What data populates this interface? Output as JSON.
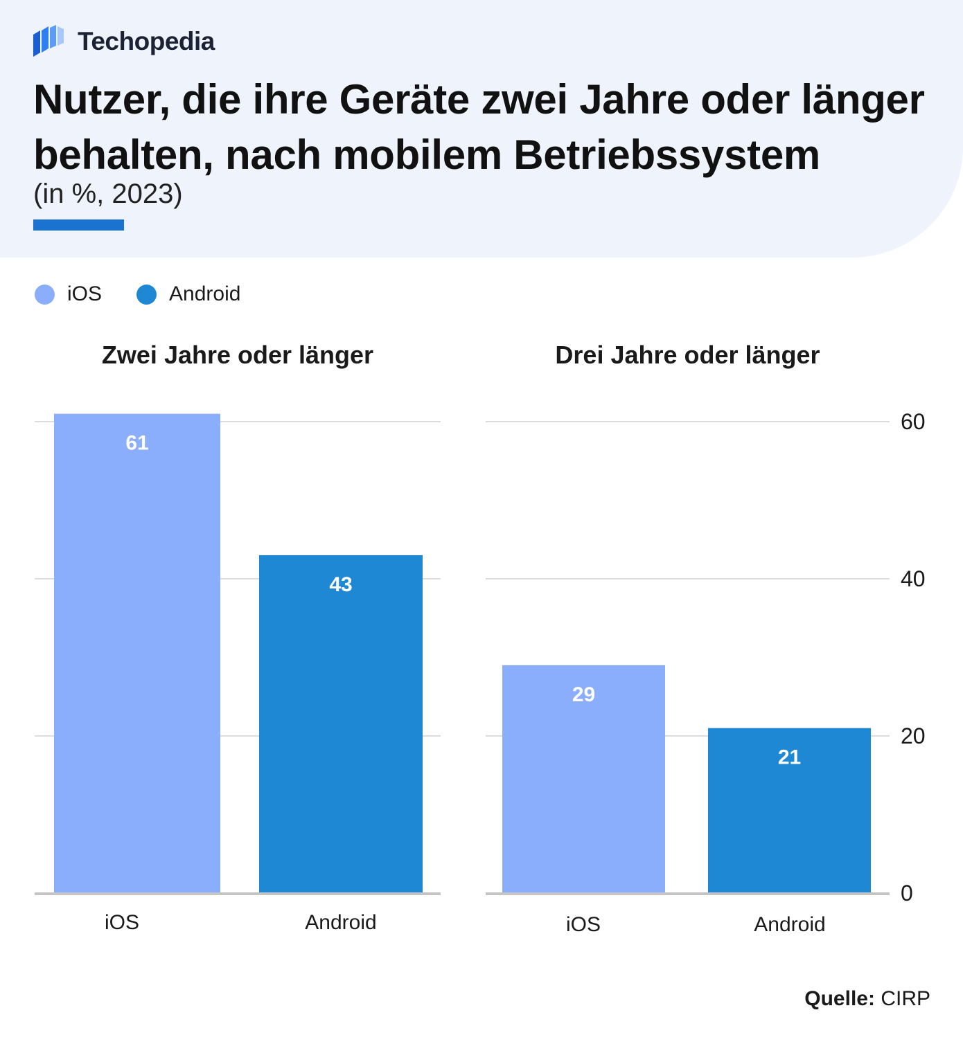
{
  "brand": {
    "name": "Techopedia",
    "accent_color": "#1a73d1"
  },
  "header": {
    "title": "Nutzer, die ihre Geräte zwei Jahre oder länger behalten, nach mobilem Betriebssystem",
    "subtitle": "(in %, 2023)"
  },
  "legend": [
    {
      "label": "iOS",
      "color": "#8aaefc"
    },
    {
      "label": "Android",
      "color": "#1e88d4"
    }
  ],
  "footer": {
    "source_label": "Quelle:",
    "source_value": "CIRP"
  },
  "chart_data": {
    "type": "bar",
    "grid": true,
    "ylim": [
      0,
      60
    ],
    "y_ticks": [
      0,
      20,
      40,
      60
    ],
    "y_axis_position": "right",
    "data_labels": true,
    "panels": [
      {
        "title": "Zwei Jahre oder länger",
        "categories": [
          "iOS",
          "Android"
        ],
        "values": [
          61,
          43
        ]
      },
      {
        "title": "Drei Jahre oder länger",
        "categories": [
          "iOS",
          "Android"
        ],
        "values": [
          29,
          21
        ]
      }
    ],
    "series_colors": {
      "iOS": "#8aaefc",
      "Android": "#1e88d4"
    },
    "xlabel": "",
    "ylabel": ""
  }
}
